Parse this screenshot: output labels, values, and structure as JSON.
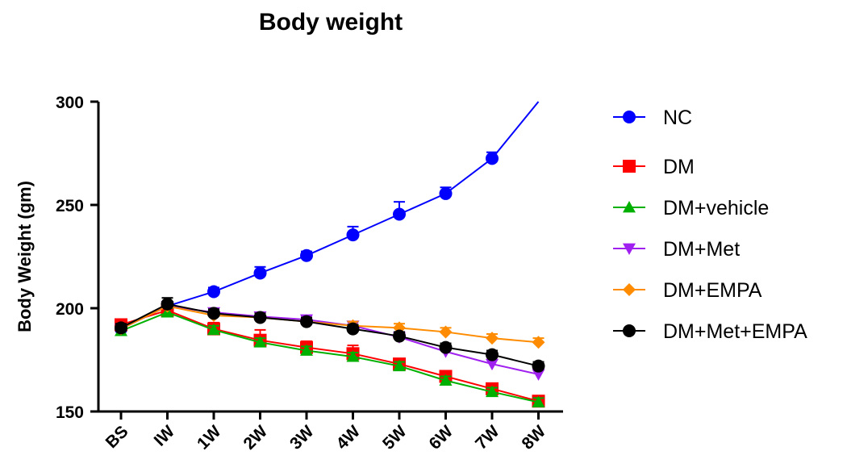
{
  "chart_data": {
    "type": "line",
    "title": "Body weight",
    "xlabel": "",
    "ylabel": "Body Weight (gm)",
    "categories": [
      "BS",
      "IW",
      "1W",
      "2W",
      "3W",
      "4W",
      "5W",
      "6W",
      "7W",
      "8W"
    ],
    "ylim": [
      150,
      300
    ],
    "yticks": [
      150,
      200,
      250,
      300
    ],
    "grid": false,
    "legend_position": "right",
    "series": [
      {
        "name": "NC",
        "color": "#0000ff",
        "marker": "circle",
        "values": [
          190,
          201,
          208,
          217,
          225.5,
          235.5,
          245.5,
          255.5,
          272.5,
          301
        ],
        "errors": [
          2,
          2,
          2,
          3,
          2,
          4,
          6,
          3,
          3,
          0
        ]
      },
      {
        "name": "DM",
        "color": "#ff0000",
        "marker": "square",
        "values": [
          192,
          199,
          190,
          184.5,
          181,
          178,
          173,
          167,
          161,
          155
        ],
        "errors": [
          2,
          2,
          3,
          5,
          3,
          4,
          2,
          2,
          2,
          2
        ]
      },
      {
        "name": "DM+vehicle",
        "color": "#00b000",
        "marker": "triangle-up",
        "values": [
          189,
          198,
          189.5,
          183.5,
          179.5,
          176.5,
          172,
          165,
          159.5,
          154.5
        ],
        "errors": [
          2,
          2,
          2,
          2,
          2,
          2,
          2,
          2,
          2,
          2
        ]
      },
      {
        "name": "DM+Met",
        "color": "#a020f0",
        "marker": "triangle-down",
        "values": [
          190,
          201,
          198,
          196,
          194.5,
          191.5,
          186,
          179,
          173,
          168
        ],
        "errors": [
          2,
          2,
          2,
          2,
          2,
          2,
          2,
          2,
          2,
          2
        ]
      },
      {
        "name": "DM+EMPA",
        "color": "#ff8c00",
        "marker": "diamond",
        "values": [
          190,
          201,
          196.5,
          195.5,
          193.5,
          191.5,
          190.5,
          188.5,
          185.5,
          183.5
        ],
        "errors": [
          2,
          2,
          2,
          2,
          2,
          2,
          2,
          2,
          2,
          2
        ]
      },
      {
        "name": "DM+Met+EMPA",
        "color": "#000000",
        "marker": "circle",
        "values": [
          190.5,
          202,
          197.5,
          195.5,
          193.5,
          190,
          186.5,
          181,
          177.5,
          172
        ],
        "errors": [
          2,
          3,
          2,
          2,
          2,
          2,
          2,
          2,
          2,
          2
        ]
      }
    ]
  }
}
